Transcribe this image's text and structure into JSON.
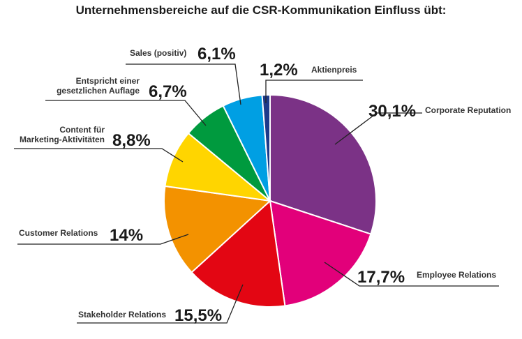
{
  "chart_data": {
    "type": "pie",
    "title": "Unternehmensbereiche auf die CSR-Kommunikation Einfluss übt:",
    "slices": [
      {
        "label": "Corporate Reputation",
        "value": 30.1,
        "value_label": "30,1%",
        "color": "#7b3286"
      },
      {
        "label": "Employee Relations",
        "value": 17.7,
        "value_label": "17,7%",
        "color": "#e2007a"
      },
      {
        "label": "Stakeholder Relations",
        "value": 15.5,
        "value_label": "15,5%",
        "color": "#e30613"
      },
      {
        "label": "Customer Relations",
        "value": 14,
        "value_label": "14%",
        "color": "#f39200"
      },
      {
        "label": "Content für Marketing-Aktivitäten",
        "label_lines": [
          "Content für",
          "Marketing-Aktivitäten"
        ],
        "value": 8.8,
        "value_label": "8,8%",
        "color": "#ffd500"
      },
      {
        "label": "Entspricht einer gesetzlichen Auflage",
        "label_lines": [
          "Entspricht einer",
          "gesetzlichen Auflage"
        ],
        "value": 6.7,
        "value_label": "6,7%",
        "color": "#009a3e"
      },
      {
        "label": "Sales (positiv)",
        "value": 6.1,
        "value_label": "6,1%",
        "color": "#009fe3"
      },
      {
        "label": "Aktienpreis",
        "value": 1.2,
        "value_label": "1,2%",
        "color": "#1d3a8a"
      }
    ],
    "start": "12 o'clock",
    "direction": "clockwise",
    "legend": "none",
    "labels": "outside with leader lines"
  }
}
